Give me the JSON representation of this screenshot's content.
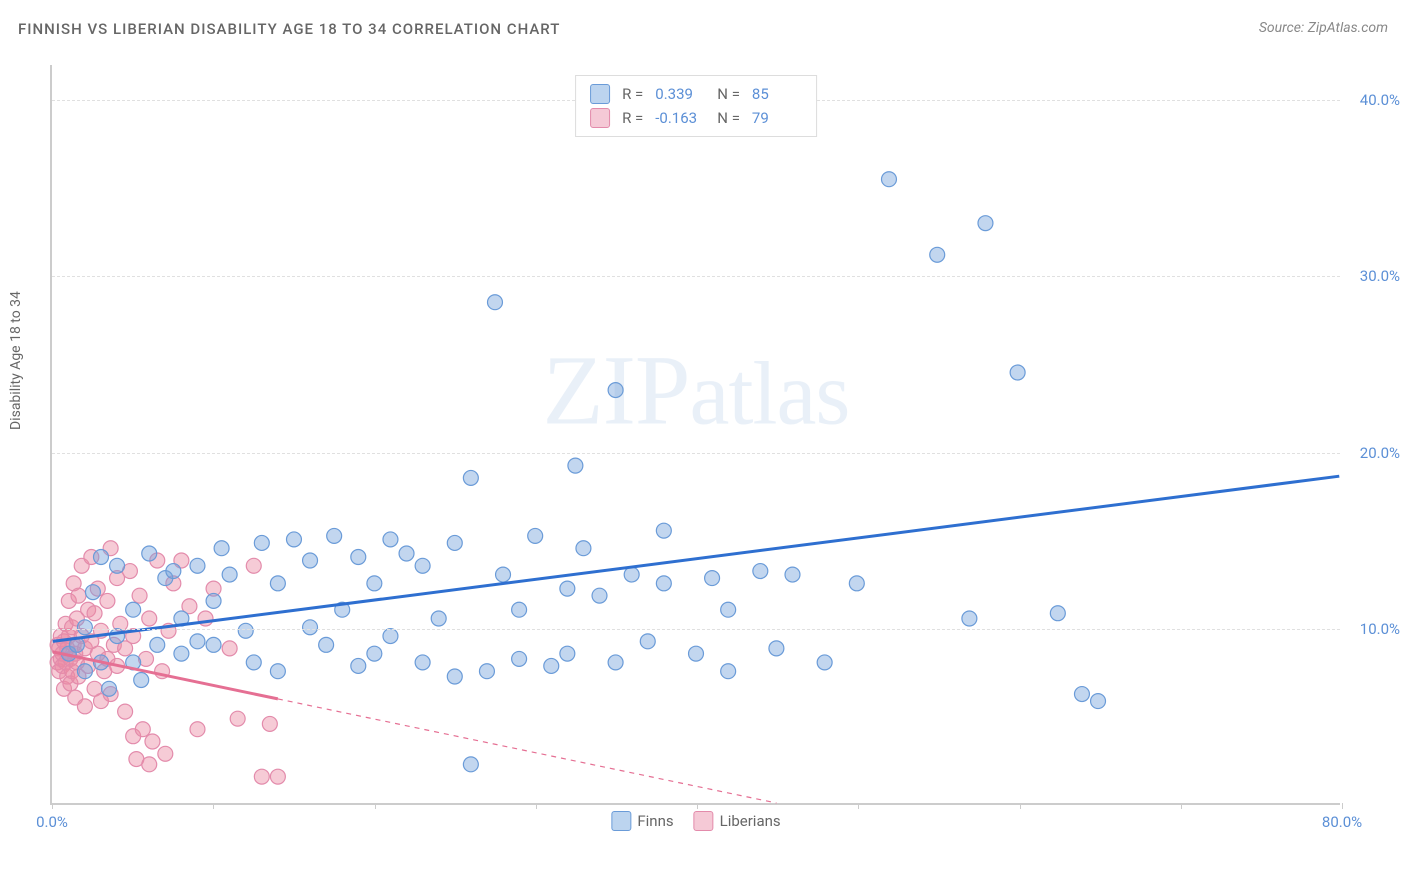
{
  "header": {
    "title": "FINNISH VS LIBERIAN DISABILITY AGE 18 TO 34 CORRELATION CHART",
    "source_prefix": "Source: ",
    "source": "ZipAtlas.com"
  },
  "chart": {
    "type": "scatter",
    "ylabel": "Disability Age 18 to 34",
    "watermark": "ZIPatlas",
    "background_color": "#ffffff",
    "grid_color": "#e0e0e0",
    "axis_color": "#cccccc",
    "tick_label_color": "#5b8fd6",
    "xlim": [
      0,
      80
    ],
    "ylim": [
      0,
      42
    ],
    "xtick_step": 10,
    "ytick_step": 10,
    "xtick_labels": {
      "0": "0.0%",
      "80": "80.0%"
    },
    "ytick_labels": {
      "10": "10.0%",
      "20": "20.0%",
      "30": "30.0%",
      "40": "40.0%"
    },
    "marker_radius": 7.5,
    "marker_stroke_width": 1.2,
    "trend_line_width": 3,
    "series": [
      {
        "name": "Finns",
        "fill_color": "rgba(120,165,220,0.45)",
        "stroke_color": "#6a9bd8",
        "swatch_fill": "#bcd4ef",
        "swatch_border": "#6a9bd8",
        "trend_color": "#2e6fd0",
        "trend_start": [
          0,
          9.2
        ],
        "trend_end": [
          80,
          18.6
        ],
        "trend_solid_until": 80,
        "R": "0.339",
        "N": "85",
        "points": [
          [
            1,
            8.5
          ],
          [
            1.5,
            9
          ],
          [
            2,
            10
          ],
          [
            2,
            7.5
          ],
          [
            2.5,
            12
          ],
          [
            3,
            8
          ],
          [
            3,
            14
          ],
          [
            3.5,
            6.5
          ],
          [
            4,
            9.5
          ],
          [
            4,
            13.5
          ],
          [
            5,
            8
          ],
          [
            5,
            11
          ],
          [
            5.5,
            7
          ],
          [
            6,
            14.2
          ],
          [
            6.5,
            9
          ],
          [
            7,
            12.8
          ],
          [
            7.5,
            13.2
          ],
          [
            8,
            8.5
          ],
          [
            8,
            10.5
          ],
          [
            9,
            13.5
          ],
          [
            9,
            9.2
          ],
          [
            10,
            11.5
          ],
          [
            10,
            9
          ],
          [
            10.5,
            14.5
          ],
          [
            11,
            13
          ],
          [
            12,
            9.8
          ],
          [
            12.5,
            8
          ],
          [
            13,
            14.8
          ],
          [
            14,
            7.5
          ],
          [
            14,
            12.5
          ],
          [
            15,
            15
          ],
          [
            16,
            13.8
          ],
          [
            16,
            10
          ],
          [
            17,
            9
          ],
          [
            17.5,
            15.2
          ],
          [
            18,
            11
          ],
          [
            19,
            7.8
          ],
          [
            19,
            14
          ],
          [
            20,
            12.5
          ],
          [
            20,
            8.5
          ],
          [
            21,
            15
          ],
          [
            21,
            9.5
          ],
          [
            22,
            14.2
          ],
          [
            23,
            8
          ],
          [
            23,
            13.5
          ],
          [
            24,
            10.5
          ],
          [
            25,
            14.8
          ],
          [
            25,
            7.2
          ],
          [
            26,
            2.2
          ],
          [
            26,
            18.5
          ],
          [
            27,
            7.5
          ],
          [
            27.5,
            28.5
          ],
          [
            28,
            13
          ],
          [
            29,
            8.2
          ],
          [
            29,
            11
          ],
          [
            30,
            15.2
          ],
          [
            31,
            7.8
          ],
          [
            32,
            12.2
          ],
          [
            32,
            8.5
          ],
          [
            32.5,
            19.2
          ],
          [
            33,
            14.5
          ],
          [
            34,
            11.8
          ],
          [
            35,
            8
          ],
          [
            35,
            23.5
          ],
          [
            36,
            13
          ],
          [
            37,
            9.2
          ],
          [
            38,
            15.5
          ],
          [
            38,
            12.5
          ],
          [
            40,
            8.5
          ],
          [
            41,
            12.8
          ],
          [
            42,
            7.5
          ],
          [
            42,
            11
          ],
          [
            44,
            13.2
          ],
          [
            45,
            8.8
          ],
          [
            46,
            13
          ],
          [
            48,
            8
          ],
          [
            50,
            12.5
          ],
          [
            52,
            35.5
          ],
          [
            55,
            31.2
          ],
          [
            57,
            10.5
          ],
          [
            58,
            33
          ],
          [
            60,
            24.5
          ],
          [
            62.5,
            10.8
          ],
          [
            64,
            6.2
          ],
          [
            65,
            5.8
          ]
        ]
      },
      {
        "name": "Liberians",
        "fill_color": "rgba(235,140,165,0.45)",
        "stroke_color": "#e38bab",
        "swatch_fill": "#f5c9d6",
        "swatch_border": "#e38bab",
        "trend_color": "#e56f93",
        "trend_start": [
          0,
          8.6
        ],
        "trend_end": [
          45,
          0
        ],
        "trend_solid_until": 14,
        "R": "-0.163",
        "N": "79",
        "points": [
          [
            0.3,
            8
          ],
          [
            0.3,
            9
          ],
          [
            0.4,
            7.5
          ],
          [
            0.4,
            8.8
          ],
          [
            0.5,
            8.2
          ],
          [
            0.5,
            9.5
          ],
          [
            0.6,
            7.8
          ],
          [
            0.6,
            8.5
          ],
          [
            0.7,
            9.2
          ],
          [
            0.7,
            6.5
          ],
          [
            0.8,
            8
          ],
          [
            0.8,
            10.2
          ],
          [
            0.9,
            7.2
          ],
          [
            0.9,
            8.8
          ],
          [
            1,
            9.5
          ],
          [
            1,
            11.5
          ],
          [
            1.1,
            6.8
          ],
          [
            1.1,
            8.2
          ],
          [
            1.2,
            10
          ],
          [
            1.2,
            7.5
          ],
          [
            1.3,
            9
          ],
          [
            1.3,
            12.5
          ],
          [
            1.4,
            8.5
          ],
          [
            1.4,
            6
          ],
          [
            1.5,
            10.5
          ],
          [
            1.5,
            8
          ],
          [
            1.6,
            11.8
          ],
          [
            1.6,
            7.2
          ],
          [
            1.8,
            9.5
          ],
          [
            1.8,
            13.5
          ],
          [
            2,
            8.8
          ],
          [
            2,
            5.5
          ],
          [
            2.2,
            11
          ],
          [
            2.2,
            7.8
          ],
          [
            2.4,
            14
          ],
          [
            2.4,
            9.2
          ],
          [
            2.6,
            6.5
          ],
          [
            2.6,
            10.8
          ],
          [
            2.8,
            8.5
          ],
          [
            2.8,
            12.2
          ],
          [
            3,
            9.8
          ],
          [
            3,
            5.8
          ],
          [
            3.2,
            7.5
          ],
          [
            3.4,
            11.5
          ],
          [
            3.4,
            8.2
          ],
          [
            3.6,
            14.5
          ],
          [
            3.6,
            6.2
          ],
          [
            3.8,
            9
          ],
          [
            4,
            12.8
          ],
          [
            4,
            7.8
          ],
          [
            4.2,
            10.2
          ],
          [
            4.5,
            5.2
          ],
          [
            4.5,
            8.8
          ],
          [
            4.8,
            13.2
          ],
          [
            5,
            3.8
          ],
          [
            5,
            9.5
          ],
          [
            5.2,
            2.5
          ],
          [
            5.4,
            11.8
          ],
          [
            5.6,
            4.2
          ],
          [
            5.8,
            8.2
          ],
          [
            6,
            2.2
          ],
          [
            6,
            10.5
          ],
          [
            6.2,
            3.5
          ],
          [
            6.5,
            13.8
          ],
          [
            6.8,
            7.5
          ],
          [
            7,
            2.8
          ],
          [
            7.2,
            9.8
          ],
          [
            7.5,
            12.5
          ],
          [
            8,
            13.8
          ],
          [
            8.5,
            11.2
          ],
          [
            9,
            4.2
          ],
          [
            9.5,
            10.5
          ],
          [
            10,
            12.2
          ],
          [
            11,
            8.8
          ],
          [
            11.5,
            4.8
          ],
          [
            12.5,
            13.5
          ],
          [
            13,
            1.5
          ],
          [
            13.5,
            4.5
          ],
          [
            14,
            1.5
          ]
        ]
      }
    ],
    "legend_bottom": [
      {
        "label": "Finns",
        "series_idx": 0
      },
      {
        "label": "Liberians",
        "series_idx": 1
      }
    ]
  }
}
